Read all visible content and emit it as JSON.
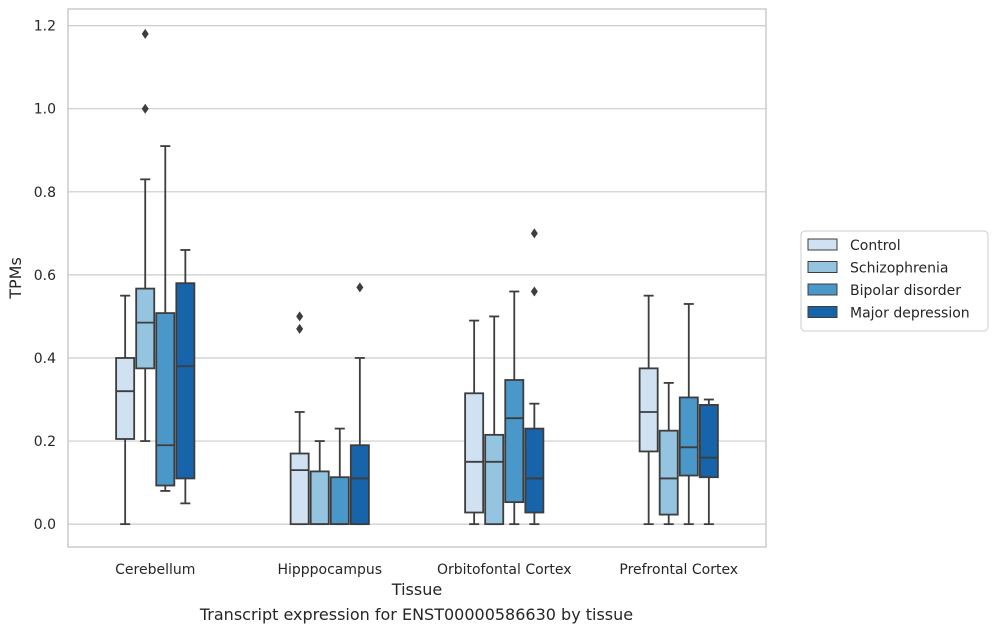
{
  "caption": "Transcript expression for ENST00000586630 by tissue",
  "chart_data": {
    "type": "boxplot",
    "xlabel": "Tissue",
    "ylabel": "TPMs",
    "ylim": [
      -0.055,
      1.24
    ],
    "yticks": [
      0.0,
      0.2,
      0.4,
      0.6,
      0.8,
      1.0,
      1.2
    ],
    "ytick_labels": [
      "0.0",
      "0.2",
      "0.4",
      "0.6",
      "0.8",
      "1.0",
      "1.2"
    ],
    "grid": "horizontal",
    "legend_position": "right",
    "categories": [
      "Cerebellum",
      "Hipppocampus",
      "Orbitofontal Cortex",
      "Prefrontal Cortex"
    ],
    "series": [
      {
        "name": "Control",
        "color": "#d0e1f2",
        "boxes": [
          {
            "whislo": 0.0,
            "q1": 0.205,
            "med": 0.32,
            "q3": 0.4,
            "whishi": 0.55,
            "fliers": []
          },
          {
            "whislo": 0.0,
            "q1": 0.0,
            "med": 0.13,
            "q3": 0.17,
            "whishi": 0.27,
            "fliers": [
              0.47,
              0.5
            ]
          },
          {
            "whislo": 0.0,
            "q1": 0.028,
            "med": 0.15,
            "q3": 0.315,
            "whishi": 0.49,
            "fliers": []
          },
          {
            "whislo": 0.0,
            "q1": 0.175,
            "med": 0.27,
            "q3": 0.375,
            "whishi": 0.55,
            "fliers": []
          }
        ]
      },
      {
        "name": "Schizophrenia",
        "color": "#94c4df",
        "boxes": [
          {
            "whislo": 0.2,
            "q1": 0.375,
            "med": 0.485,
            "q3": 0.567,
            "whishi": 0.83,
            "fliers": [
              1.0,
              1.18
            ]
          },
          {
            "whislo": 0.0,
            "q1": 0.0,
            "med": 0.0,
            "q3": 0.127,
            "whishi": 0.2,
            "fliers": []
          },
          {
            "whislo": 0.0,
            "q1": 0.0,
            "med": 0.15,
            "q3": 0.215,
            "whishi": 0.5,
            "fliers": []
          },
          {
            "whislo": 0.0,
            "q1": 0.023,
            "med": 0.11,
            "q3": 0.225,
            "whishi": 0.34,
            "fliers": []
          }
        ]
      },
      {
        "name": "Bipolar disorder",
        "color": "#4a98c9",
        "boxes": [
          {
            "whislo": 0.08,
            "q1": 0.093,
            "med": 0.19,
            "q3": 0.508,
            "whishi": 0.91,
            "fliers": []
          },
          {
            "whislo": 0.0,
            "q1": 0.0,
            "med": 0.0,
            "q3": 0.113,
            "whishi": 0.23,
            "fliers": []
          },
          {
            "whislo": 0.0,
            "q1": 0.053,
            "med": 0.255,
            "q3": 0.347,
            "whishi": 0.56,
            "fliers": []
          },
          {
            "whislo": 0.0,
            "q1": 0.117,
            "med": 0.185,
            "q3": 0.305,
            "whishi": 0.53,
            "fliers": []
          }
        ]
      },
      {
        "name": "Major depression",
        "color": "#1764ab",
        "boxes": [
          {
            "whislo": 0.05,
            "q1": 0.11,
            "med": 0.38,
            "q3": 0.58,
            "whishi": 0.66,
            "fliers": []
          },
          {
            "whislo": 0.0,
            "q1": 0.0,
            "med": 0.11,
            "q3": 0.19,
            "whishi": 0.4,
            "fliers": [
              0.57
            ]
          },
          {
            "whislo": 0.0,
            "q1": 0.028,
            "med": 0.11,
            "q3": 0.23,
            "whishi": 0.29,
            "fliers": [
              0.56,
              0.7
            ]
          },
          {
            "whislo": 0.0,
            "q1": 0.113,
            "med": 0.16,
            "q3": 0.287,
            "whishi": 0.3,
            "fliers": []
          }
        ]
      }
    ]
  }
}
